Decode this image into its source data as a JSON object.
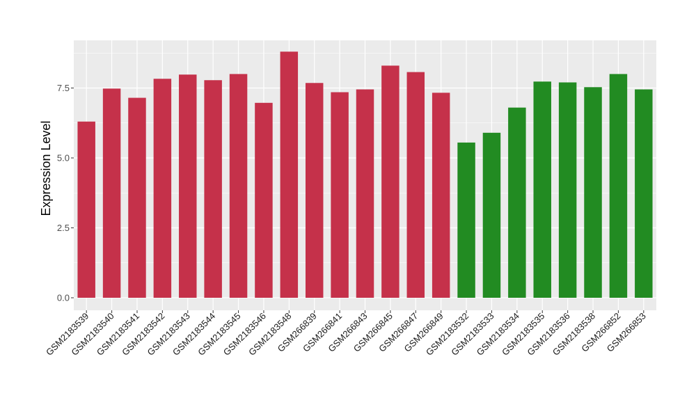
{
  "chart_data": {
    "type": "bar",
    "title": "",
    "xlabel": "",
    "ylabel": "Expression Level",
    "ylim": [
      0,
      9.2
    ],
    "yticks": [
      0.0,
      2.5,
      5.0,
      7.5
    ],
    "ytick_labels": [
      "0.0",
      "2.5",
      "5.0",
      "7.5"
    ],
    "grid": true,
    "legend": "none",
    "categories": [
      "GSM2183539",
      "GSM2183540",
      "GSM2183541",
      "GSM2183542",
      "GSM2183543",
      "GSM2183544",
      "GSM2183545",
      "GSM2183546",
      "GSM2183548",
      "GSM266839",
      "GSM266841",
      "GSM266843",
      "GSM266845",
      "GSM266847",
      "GSM266849",
      "GSM2183532",
      "GSM2183533",
      "GSM2183534",
      "GSM2183535",
      "GSM2183536",
      "GSM2183538",
      "GSM266852",
      "GSM266853"
    ],
    "values": [
      6.3,
      7.48,
      7.15,
      7.83,
      7.98,
      7.78,
      8.0,
      6.97,
      8.8,
      7.68,
      7.35,
      7.45,
      8.3,
      8.07,
      7.33,
      5.55,
      5.9,
      6.8,
      7.73,
      7.7,
      7.53,
      8.0,
      7.45
    ],
    "groups": [
      "A",
      "A",
      "A",
      "A",
      "A",
      "A",
      "A",
      "A",
      "A",
      "A",
      "A",
      "A",
      "A",
      "A",
      "A",
      "B",
      "B",
      "B",
      "B",
      "B",
      "B",
      "B",
      "B"
    ],
    "colors": {
      "A": "#c5314a",
      "B": "#228b22",
      "panel": "#ebebeb",
      "grid": "#ffffff",
      "axis_text": "#4d4d4d"
    }
  }
}
